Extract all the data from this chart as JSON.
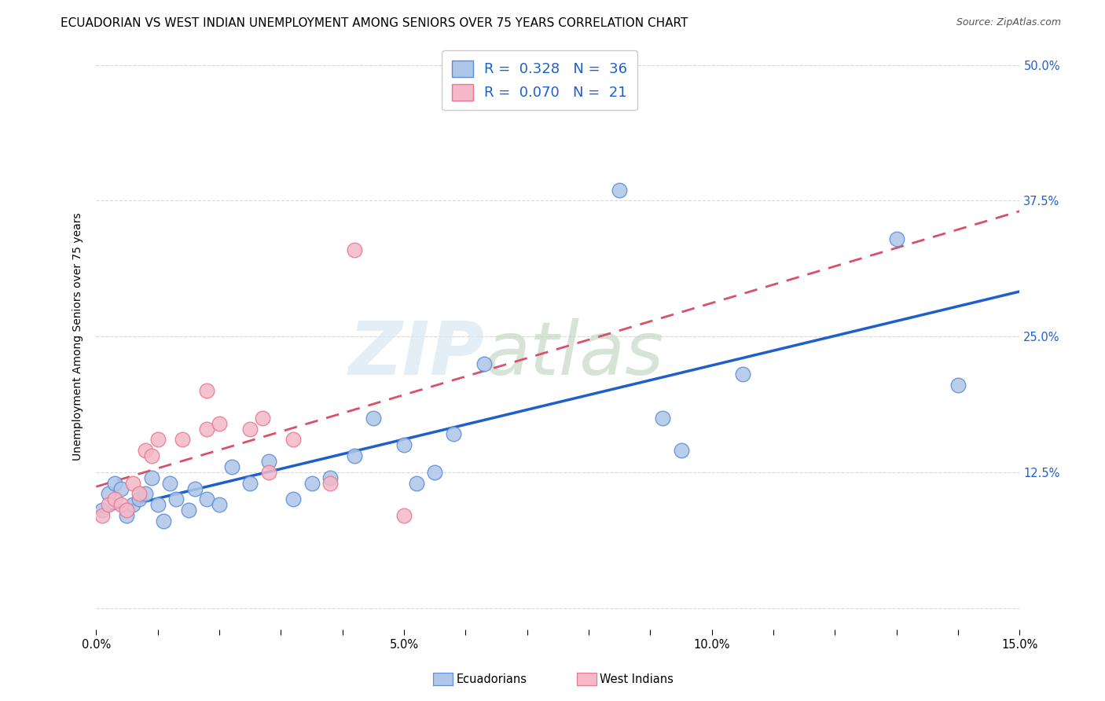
{
  "title": "ECUADORIAN VS WEST INDIAN UNEMPLOYMENT AMONG SENIORS OVER 75 YEARS CORRELATION CHART",
  "source": "Source: ZipAtlas.com",
  "ylabel": "Unemployment Among Seniors over 75 years",
  "xlim": [
    0.0,
    0.15
  ],
  "ylim": [
    -0.02,
    0.52
  ],
  "yticks": [
    0.0,
    0.125,
    0.25,
    0.375,
    0.5
  ],
  "ytick_labels": [
    "",
    "12.5%",
    "25.0%",
    "37.5%",
    "50.0%"
  ],
  "legend_R_ecuadorian": "0.328",
  "legend_N_ecuadorian": "36",
  "legend_R_westindian": "0.070",
  "legend_N_westindian": "21",
  "ecuadorian_color": "#aec6e8",
  "ecuadorian_edge_color": "#5b8dd9",
  "ecuadorian_line_color": "#1f5fcc",
  "westindian_color": "#f4b8c8",
  "westindian_edge_color": "#e87890",
  "westindian_line_color": "#d9506a",
  "ecuadorian_x": [
    0.001,
    0.002,
    0.003,
    0.004,
    0.005,
    0.006,
    0.007,
    0.008,
    0.009,
    0.01,
    0.011,
    0.012,
    0.013,
    0.015,
    0.016,
    0.018,
    0.02,
    0.022,
    0.025,
    0.028,
    0.032,
    0.035,
    0.038,
    0.042,
    0.045,
    0.05,
    0.052,
    0.055,
    0.058,
    0.063,
    0.085,
    0.092,
    0.095,
    0.105,
    0.13,
    0.14
  ],
  "ecuadorian_y": [
    0.09,
    0.105,
    0.115,
    0.11,
    0.085,
    0.095,
    0.1,
    0.105,
    0.12,
    0.095,
    0.08,
    0.115,
    0.1,
    0.09,
    0.11,
    0.1,
    0.095,
    0.13,
    0.115,
    0.135,
    0.1,
    0.115,
    0.12,
    0.14,
    0.175,
    0.15,
    0.115,
    0.125,
    0.16,
    0.225,
    0.385,
    0.175,
    0.145,
    0.215,
    0.34,
    0.205
  ],
  "westindian_x": [
    0.001,
    0.002,
    0.003,
    0.004,
    0.005,
    0.006,
    0.007,
    0.008,
    0.009,
    0.01,
    0.014,
    0.018,
    0.02,
    0.025,
    0.027,
    0.028,
    0.032,
    0.038,
    0.042,
    0.05,
    0.018
  ],
  "westindian_y": [
    0.085,
    0.095,
    0.1,
    0.095,
    0.09,
    0.115,
    0.105,
    0.145,
    0.14,
    0.155,
    0.155,
    0.165,
    0.17,
    0.165,
    0.175,
    0.125,
    0.155,
    0.115,
    0.33,
    0.085,
    0.2
  ],
  "background_color": "#ffffff",
  "grid_color": "#d8d8d8",
  "watermark_zip": "ZIP",
  "watermark_atlas": "atlas",
  "title_fontsize": 11,
  "axis_label_fontsize": 10,
  "tick_fontsize": 10.5,
  "legend_fontsize": 13,
  "source_fontsize": 9
}
